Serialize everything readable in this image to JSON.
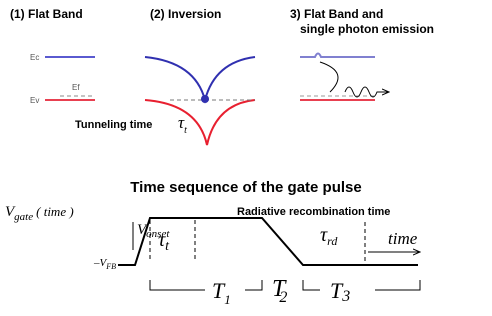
{
  "panels": [
    {
      "title": "(1) Flat Band"
    },
    {
      "title": "(2) Inversion"
    },
    {
      "title": "3) Flat Band and",
      "subtitle": "single photon emission"
    }
  ],
  "band_labels": {
    "ec": "Ec",
    "ev": "Ev",
    "ef": "Ef"
  },
  "tunneling": {
    "label": "Tunneling time",
    "symbol": "τ",
    "subscript": "t"
  },
  "timing": {
    "title": "Time sequence of the gate pulse",
    "vgate": {
      "symbol": "V",
      "subscript": "gate",
      "suffix": "( time )"
    },
    "radiative": "Radiative recombination time",
    "vonset": {
      "symbol": "V",
      "subscript": "onset"
    },
    "vfb": {
      "symbol": "V",
      "subscript": "FB"
    },
    "tau_t": {
      "symbol": "τ",
      "subscript": "t"
    },
    "tau_rd": {
      "symbol": "τ",
      "subscript": "rd"
    },
    "time": "time",
    "t1": {
      "symbol": "T",
      "subscript": "1"
    },
    "t2": {
      "symbol": "T",
      "subscript": "2"
    },
    "t3": {
      "symbol": "T",
      "subscript": "3"
    }
  }
}
